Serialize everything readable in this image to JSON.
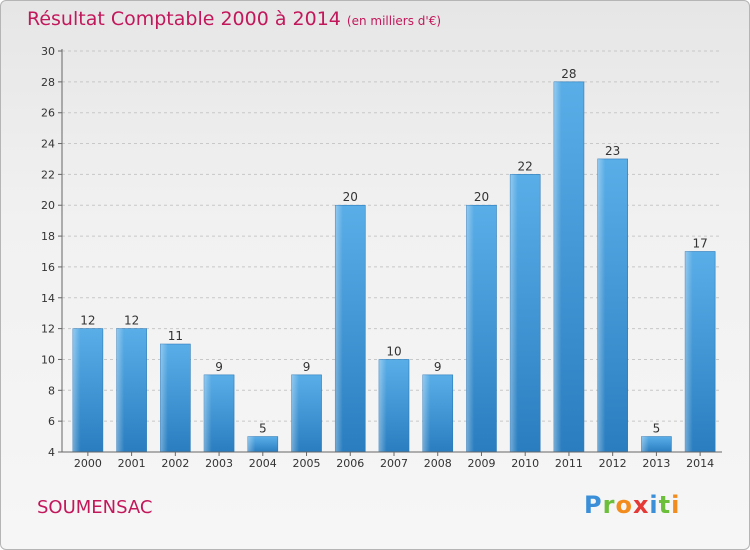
{
  "header": {
    "title": "Résultat Comptable 2000 à 2014",
    "subtitle": "(en milliers d'€)"
  },
  "footer": {
    "commune": "SOUMENSAC",
    "logo": "Proxiti"
  },
  "colors": {
    "title": "#c2185b",
    "bar_light": "#5aaee8",
    "bar_dark": "#2a7ec0",
    "grid": "#cccccc"
  },
  "chart_data": {
    "type": "bar",
    "categories": [
      "2000",
      "2001",
      "2002",
      "2003",
      "2004",
      "2005",
      "2006",
      "2007",
      "2008",
      "2009",
      "2010",
      "2011",
      "2012",
      "2013",
      "2014"
    ],
    "values": [
      12,
      12,
      11,
      9,
      5,
      9,
      20,
      10,
      9,
      20,
      22,
      28,
      23,
      5,
      17
    ],
    "title": "Résultat Comptable 2000 à 2014",
    "xlabel": "",
    "ylabel": "",
    "ylim": [
      4,
      30
    ],
    "yticks": [
      4,
      6,
      8,
      10,
      12,
      14,
      16,
      18,
      20,
      22,
      24,
      26,
      28,
      30
    ],
    "grid": true,
    "legend": "none"
  }
}
